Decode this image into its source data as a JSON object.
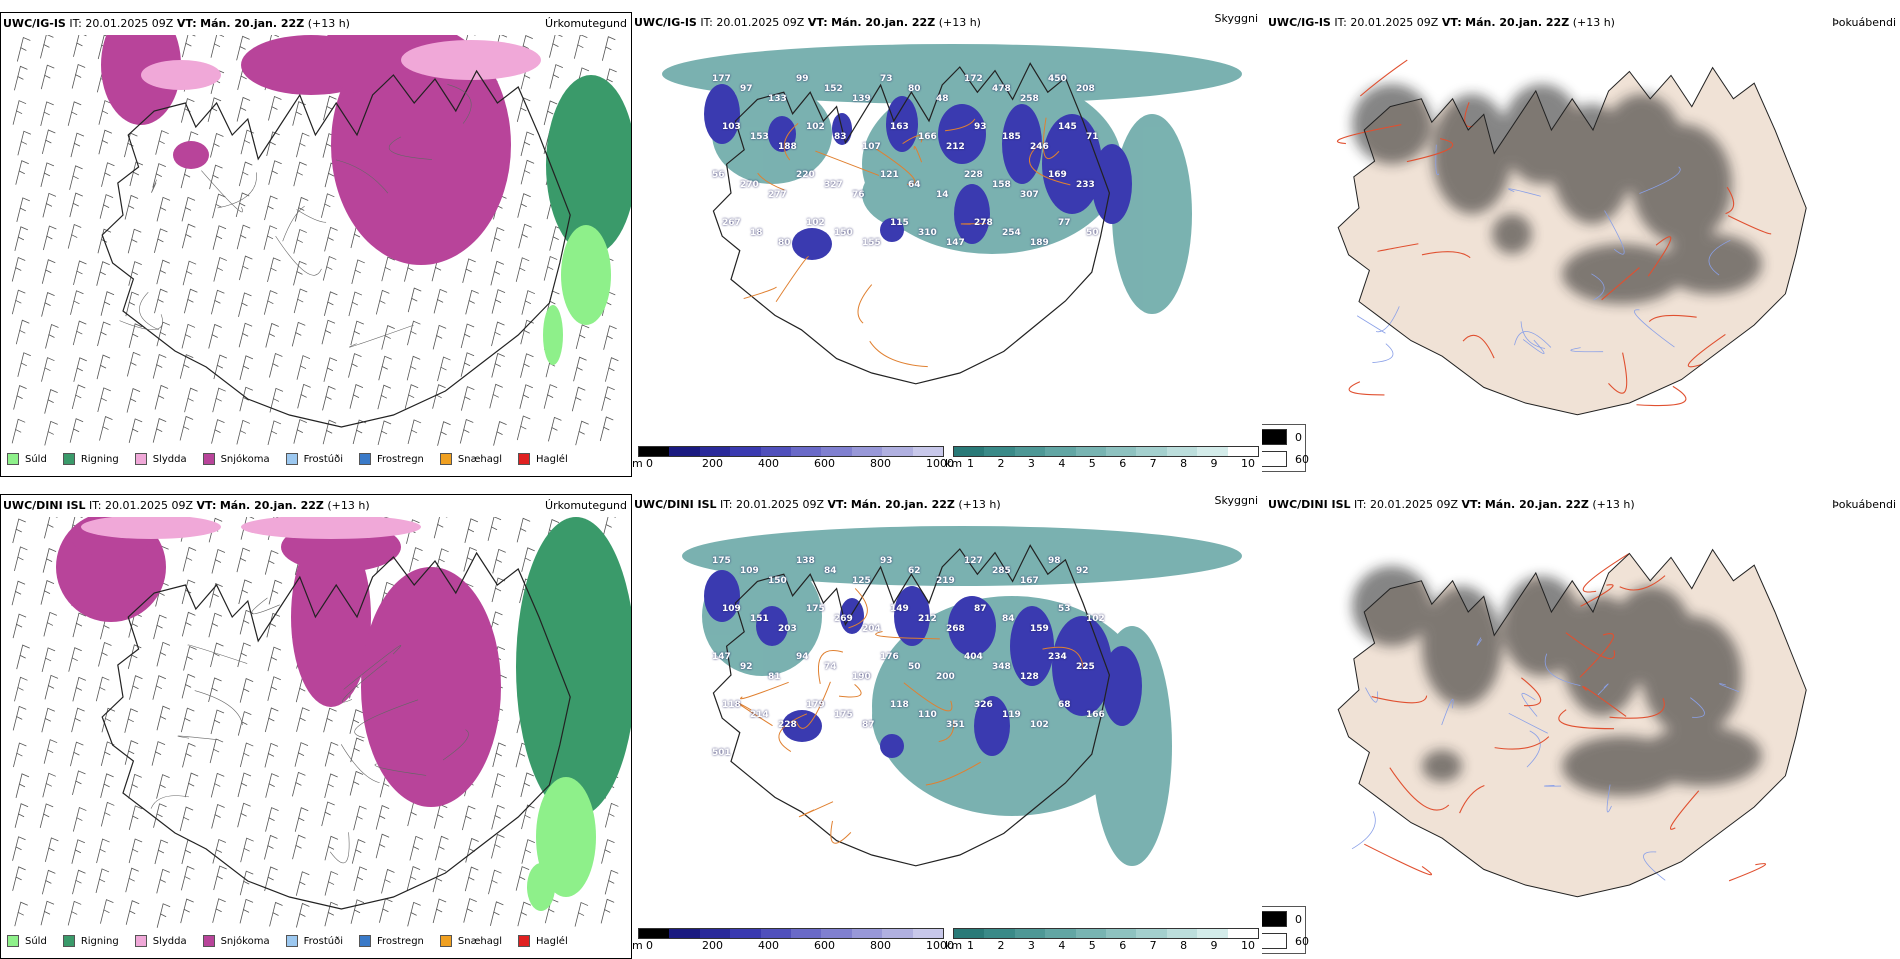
{
  "rows": [
    {
      "model": "UWC/IG-IS",
      "it_label": "IT:",
      "it_value": "20.01.2025 09Z",
      "vt_label": "VT:",
      "vt_value": "Mán. 20.jan. 22Z",
      "lead": "(+13 h)"
    },
    {
      "model": "UWC/DINI ISL",
      "it_label": "IT:",
      "it_value": "20.01.2025 09Z",
      "vt_label": "VT:",
      "vt_value": "Mán. 20.jan. 22Z",
      "lead": "(+13 h)"
    }
  ],
  "panel_names": {
    "precip": "Úrkomutegund",
    "cloud": "Skyggni",
    "fog": "Þokuábendi"
  },
  "precip_legend": [
    {
      "label": "Súld",
      "color": "#8ef08a"
    },
    {
      "label": "Rigning",
      "color": "#3a9a6a"
    },
    {
      "label": "Slydda",
      "color": "#f0a8d8"
    },
    {
      "label": "Snjókoma",
      "color": "#b8449a"
    },
    {
      "label": "Frostúði",
      "color": "#9cc8f0"
    },
    {
      "label": "Frostregn",
      "color": "#3a7ac8"
    },
    {
      "label": "Snæhagl",
      "color": "#f0a020"
    },
    {
      "label": "Haglél",
      "color": "#e02020"
    }
  ],
  "height_bar": {
    "unit": "m",
    "ticks": [
      "0",
      "200",
      "400",
      "600",
      "800",
      "1000"
    ],
    "colors": [
      "#000000",
      "#1a1a80",
      "#2a2a9a",
      "#3a3ab0",
      "#5050bc",
      "#6a6ac8",
      "#8080d0",
      "#9898d8",
      "#b0b0e0",
      "#c8c8ea"
    ]
  },
  "vis_bar": {
    "unit": "km",
    "ticks": [
      "1",
      "2",
      "3",
      "4",
      "5",
      "6",
      "7",
      "8",
      "9",
      "10"
    ],
    "colors": [
      "#2a7a78",
      "#3a8a88",
      "#4e9896",
      "#62a6a4",
      "#78b4b2",
      "#8ec2c0",
      "#a4d0ce",
      "#bcdedc",
      "#d4ecea",
      "#ffffff"
    ]
  },
  "fog_legend": [
    {
      "label": "0",
      "color": "#000000"
    },
    {
      "label": "60",
      "color": "#ffffff"
    }
  ],
  "top_cloud_labels": [
    "177",
    "97",
    "133",
    "99",
    "152",
    "139",
    "73",
    "80",
    "48",
    "172",
    "478",
    "258",
    "450",
    "208",
    "103",
    "153",
    "188",
    "102",
    "83",
    "107",
    "163",
    "166",
    "212",
    "93",
    "185",
    "246",
    "145",
    "71",
    "56",
    "270",
    "277",
    "220",
    "327",
    "76",
    "121",
    "64",
    "14",
    "228",
    "158",
    "307",
    "169",
    "233",
    "267",
    "18",
    "80",
    "102",
    "150",
    "155",
    "115",
    "310",
    "147",
    "278",
    "254",
    "189",
    "77",
    "50"
  ],
  "bottom_cloud_labels": [
    "175",
    "109",
    "150",
    "138",
    "84",
    "125",
    "93",
    "62",
    "219",
    "127",
    "285",
    "167",
    "98",
    "92",
    "109",
    "151",
    "203",
    "175",
    "269",
    "204",
    "149",
    "212",
    "268",
    "87",
    "84",
    "159",
    "53",
    "102",
    "147",
    "92",
    "81",
    "94",
    "74",
    "190",
    "176",
    "50",
    "200",
    "404",
    "348",
    "128",
    "234",
    "225",
    "118",
    "214",
    "228",
    "179",
    "175",
    "87",
    "118",
    "110",
    "351",
    "326",
    "119",
    "102",
    "68",
    "166",
    "501"
  ]
}
